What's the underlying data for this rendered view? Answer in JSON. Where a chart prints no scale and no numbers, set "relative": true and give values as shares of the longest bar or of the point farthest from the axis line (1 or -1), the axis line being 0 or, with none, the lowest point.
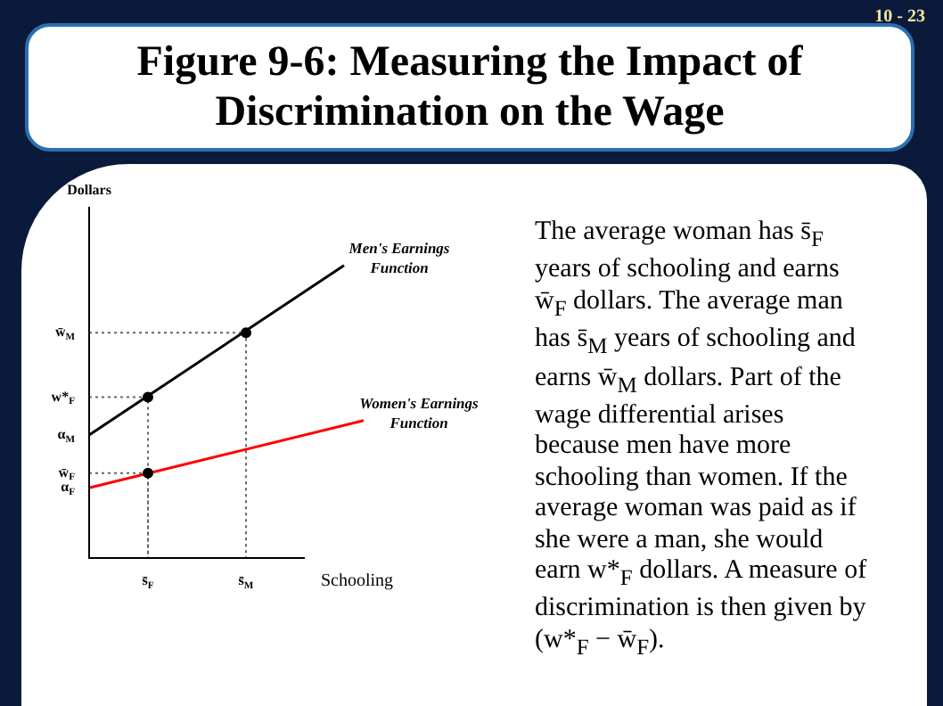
{
  "chart_data": {
    "type": "line",
    "title": "Figure 9-6: Measuring the Impact of Discrimination on the Wage",
    "xlabel": "Schooling",
    "ylabel": "Dollars",
    "relative": true,
    "categories": [
      null,
      null,
      null,
      "s̄$_{F}$",
      null,
      null,
      null,
      null,
      "s̄$_{M}$",
      null,
      null,
      null,
      null,
      null,
      null
    ],
    "tick_labels": "x",
    "grid": false,
    "legend": false,
    "series": [
      {
        "name": "Men's Earnings Function",
        "color": "#000000",
        "marker": "none",
        "line_style": "solid",
        "values": [
          0.42,
          null,
          null,
          null,
          null,
          null,
          null,
          null,
          null,
          null,
          null,
          null,
          null,
          1,
          null
        ]
      },
      {
        "name": "Women's Earnings Function",
        "color": "#ff0000",
        "marker": "none",
        "line_style": "solid",
        "values": [
          0.24,
          null,
          null,
          null,
          null,
          null,
          null,
          null,
          null,
          null,
          null,
          null,
          null,
          null,
          0.47
        ]
      },
      {
        "type": "scatter",
        "color": "#000000",
        "marker": "circle",
        "values": [
          null,
          null,
          null,
          0.55,
          null,
          null,
          null,
          null,
          0.77,
          null,
          null,
          null,
          null,
          null,
          null
        ]
      },
      {
        "type": "scatter",
        "color": "#000000",
        "marker": "circle",
        "values": [
          null,
          null,
          null,
          0.29,
          null,
          null,
          null,
          null,
          null,
          null,
          null,
          null,
          null,
          null,
          null
        ]
      }
    ],
    "annotations": [
      "w̄$_{M}$",
      "w*$_{F}$",
      "α$_{M}$",
      "w̄$_{F}$",
      "α$_{F}$",
      "10 - 23",
      "The average woman has s̄$_{F}$ years of schooling and earns w̄$_{F}$ dollars. The average man has s̄$_{M}$ years of schooling and earns w̄$_{M}$ dollars. Part of the wage differential arises because men have more schooling than women.  If the average woman was paid as if she were a man, she would earn w*$_{F}$ dollars. A measure of discrimination is then given by (w*$_{F}$ − w̄$_{F}$)."
    ]
  }
}
